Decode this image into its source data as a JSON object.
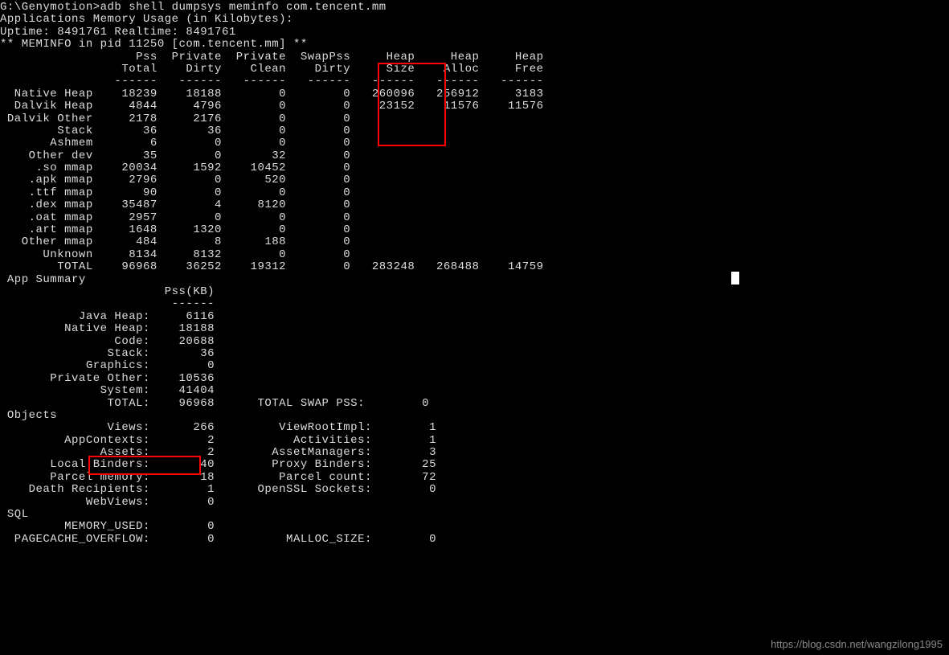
{
  "prompt": "G:\\Genymotion>adb shell dumpsys meminfo com.tencent.mm",
  "header1": "Applications Memory Usage (in Kilobytes):",
  "header2": "Uptime: 8491761 Realtime: 8491761",
  "blank": "",
  "meminfo_title": "** MEMINFO in pid 11250 [com.tencent.mm] **",
  "colhdr1": "                   Pss  Private  Private  SwapPss     Heap     Heap     Heap",
  "colhdr2": "                 Total    Dirty    Clean    Dirty     Size    Alloc     Free",
  "colsep": "                ------   ------   ------   ------   ------   ------   ------",
  "rows": [
    "  Native Heap    18239    18188        0        0   260096   256912     3183",
    "  Dalvik Heap     4844     4796        0        0    23152    11576    11576",
    " Dalvik Other     2178     2176        0        0",
    "        Stack       36       36        0        0",
    "       Ashmem        6        0        0        0",
    "    Other dev       35        0       32        0",
    "     .so mmap    20034     1592    10452        0",
    "    .apk mmap     2796        0      520        0",
    "    .ttf mmap       90        0        0        0",
    "    .dex mmap    35487        4     8120        0",
    "    .oat mmap     2957        0        0        0",
    "    .art mmap     1648     1320        0        0",
    "   Other mmap      484        8      188        0",
    "      Unknown     8134     8132        0        0",
    "        TOTAL    96968    36252    19312        0   283248   268488    14759"
  ],
  "app_summary_title": " App Summary",
  "app_summary_hdr": "                       Pss(KB)",
  "app_summary_sep": "                        ------",
  "app_summary_rows": [
    "           Java Heap:     6116",
    "         Native Heap:    18188",
    "                Code:    20688",
    "               Stack:       36",
    "            Graphics:        0",
    "       Private Other:    10536",
    "              System:    41404"
  ],
  "total_line": "               TOTAL:    96968      TOTAL SWAP PSS:        0",
  "objects_title": " Objects",
  "objects_rows": [
    "               Views:      266         ViewRootImpl:        1",
    "         AppContexts:        2           Activities:        1",
    "              Assets:        2        AssetManagers:        3",
    "       Local Binders:       40        Proxy Binders:       25",
    "       Parcel memory:       18         Parcel count:       72",
    "    Death Recipients:        1      OpenSSL Sockets:        0",
    "            WebViews:        0"
  ],
  "sql_title": " SQL",
  "sql_rows": [
    "         MEMORY_USED:        0",
    "  PAGECACHE_OVERFLOW:        0          MALLOC_SIZE:        0"
  ],
  "watermark": "https://blog.csdn.net/wangzilong1995",
  "highlight_color": "#ff0000",
  "text_color": "#dddddd",
  "bg_color": "#000000"
}
